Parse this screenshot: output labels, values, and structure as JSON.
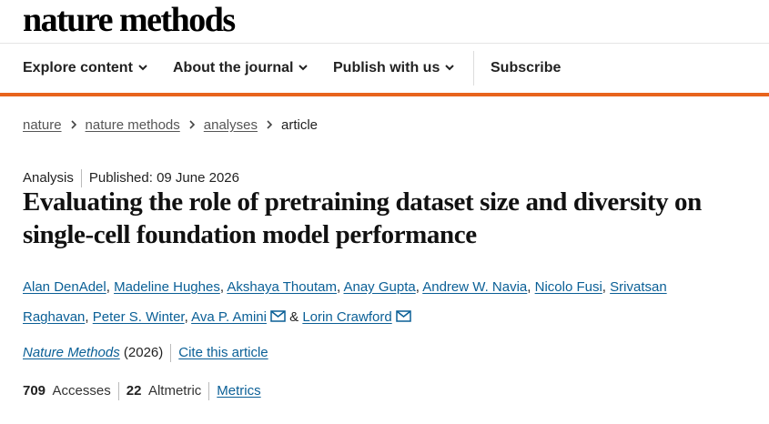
{
  "header": {
    "logo": "nature methods"
  },
  "nav": {
    "items": [
      "Explore content",
      "About the journal",
      "Publish with us"
    ],
    "subscribe": "Subscribe"
  },
  "breadcrumb": [
    "nature",
    "nature methods",
    "analyses",
    "article"
  ],
  "article": {
    "type": "Analysis",
    "published": "Published: 09 June 2026",
    "title": "Evaluating the role of pretraining dataset size and diversity on single-cell foundation model performance",
    "authors": [
      {
        "name": "Alan DenAdel"
      },
      {
        "name": "Madeline Hughes"
      },
      {
        "name": "Akshaya Thoutam"
      },
      {
        "name": "Anay Gupta"
      },
      {
        "name": "Andrew W. Navia"
      },
      {
        "name": "Nicolo Fusi"
      },
      {
        "name": "Srivatsan Raghavan"
      },
      {
        "name": "Peter S. Winter"
      },
      {
        "name": "Ava P. Amini",
        "email": true
      },
      {
        "name": "Lorin Crawford",
        "email": true
      }
    ],
    "separator": ",",
    "conjunction": "&",
    "journal": "Nature Methods",
    "year": "(2026)",
    "cite": "Cite this article",
    "metrics": {
      "accesses": "709",
      "accesses_label": "Accesses",
      "altmetric": "22",
      "altmetric_label": "Altmetric",
      "link": "Metrics"
    }
  }
}
